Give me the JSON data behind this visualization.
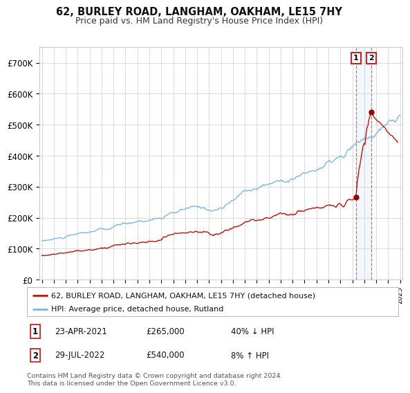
{
  "title": "62, BURLEY ROAD, LANGHAM, OAKHAM, LE15 7HY",
  "subtitle": "Price paid vs. HM Land Registry's House Price Index (HPI)",
  "ylim": [
    0,
    750000
  ],
  "yticks": [
    0,
    100000,
    200000,
    300000,
    400000,
    500000,
    600000,
    700000
  ],
  "ytick_labels": [
    "£0",
    "£100K",
    "£200K",
    "£300K",
    "£400K",
    "£500K",
    "£600K",
    "£700K"
  ],
  "hpi_color": "#7ab8e0",
  "price_color": "#bb1111",
  "marker_color": "#990000",
  "sale1_x": 2021.31,
  "sale1_y": 265000,
  "sale2_x": 2022.58,
  "sale2_y": 540000,
  "vline_color": "#cc3333",
  "span_color": "#aaccee",
  "legend_label1": "62, BURLEY ROAD, LANGHAM, OAKHAM, LE15 7HY (detached house)",
  "legend_label2": "HPI: Average price, detached house, Rutland",
  "table_entries": [
    {
      "num": "1",
      "date": "23-APR-2021",
      "price": "£265,000",
      "hpi": "40% ↓ HPI"
    },
    {
      "num": "2",
      "date": "29-JUL-2022",
      "price": "£540,000",
      "hpi": "8% ↑ HPI"
    }
  ],
  "footer": "Contains HM Land Registry data © Crown copyright and database right 2024.\nThis data is licensed under the Open Government Licence v3.0.",
  "background_color": "#ffffff",
  "grid_color": "#cccccc",
  "xlim_left": 1994.8,
  "xlim_right": 2025.2
}
